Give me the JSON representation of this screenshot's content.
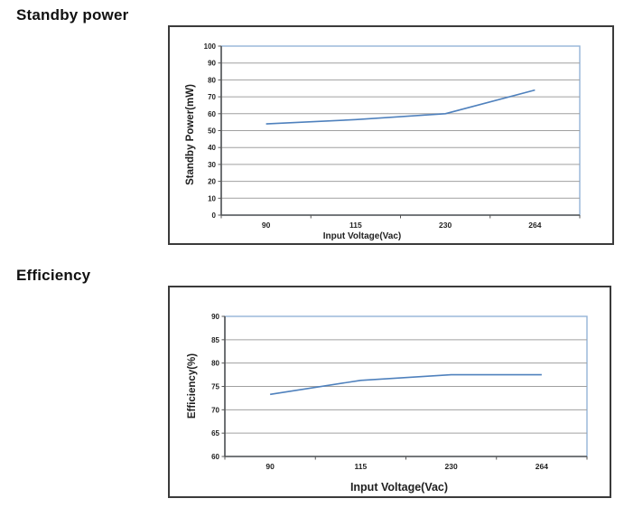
{
  "page": {
    "background": "#ffffff"
  },
  "colors": {
    "series_line": "#4f81bd",
    "gridline": "#a0a0a0",
    "axis_line": "#555555",
    "plot_border": "#95b3d7",
    "panel_border": "#3b3b3b",
    "text": "#1f1f1f",
    "heading_text": "#111111"
  },
  "sections": [
    {
      "heading": "Standby power"
    },
    {
      "heading": "Efficiency"
    }
  ],
  "chart_data": [
    {
      "type": "line",
      "title": "",
      "xlabel": "Input Voltage(Vac)",
      "ylabel": "Standby Power(mW)",
      "categories": [
        "90",
        "115",
        "230",
        "264"
      ],
      "series": [
        {
          "name": "Standby Power",
          "values": [
            54,
            56.5,
            60,
            74
          ]
        }
      ],
      "ylim": [
        0,
        100
      ],
      "y_ticks": [
        "0",
        "10",
        "20",
        "30",
        "40",
        "50",
        "60",
        "70",
        "80",
        "90",
        "100"
      ],
      "grid": "horizontal",
      "legend": "none"
    },
    {
      "type": "line",
      "title": "",
      "xlabel": "Input Voltage(Vac)",
      "ylabel": "Efficiency(%)",
      "categories": [
        "90",
        "115",
        "230",
        "264"
      ],
      "series": [
        {
          "name": "Efficiency",
          "values": [
            73.3,
            76.3,
            77.5,
            77.5
          ]
        }
      ],
      "ylim": [
        60,
        90
      ],
      "y_ticks": [
        "60",
        "65",
        "70",
        "75",
        "80",
        "85",
        "90"
      ],
      "grid": "horizontal",
      "legend": "none"
    }
  ]
}
